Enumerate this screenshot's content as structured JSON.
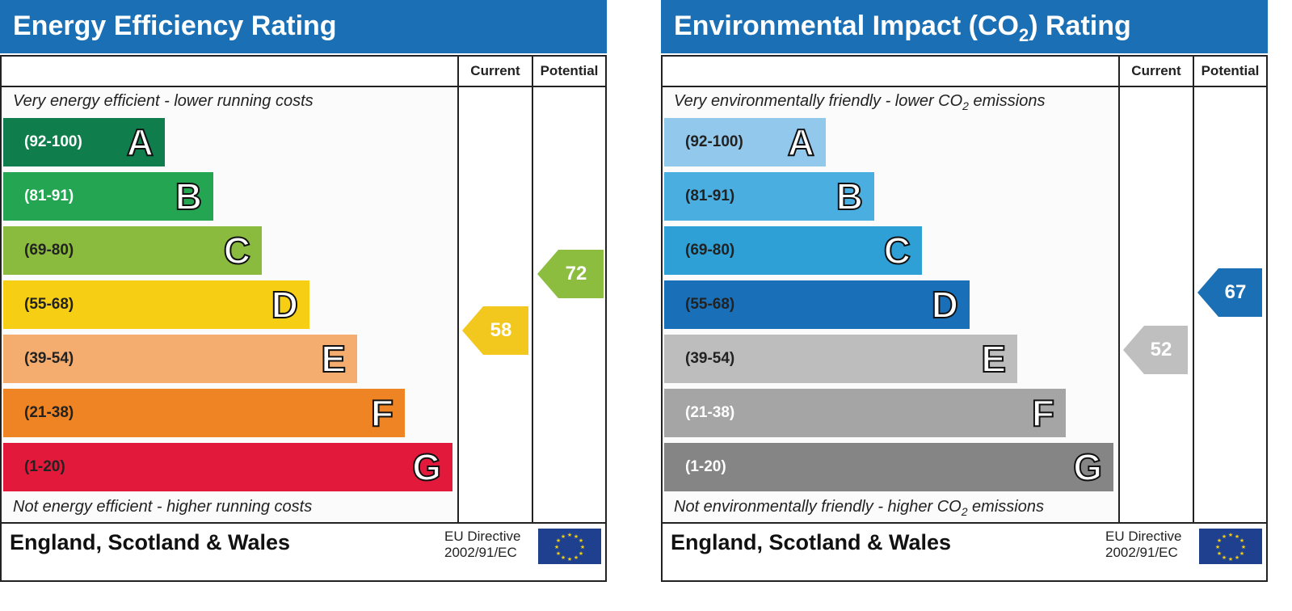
{
  "chart_data": [
    {
      "type": "bar",
      "title": "Energy Efficiency Rating",
      "columns": [
        "Current",
        "Potential"
      ],
      "top_caption": "Very energy efficient - lower running costs",
      "bottom_caption": "Not energy efficient - higher running costs",
      "bands": [
        {
          "range": "(92-100)",
          "letter": "A",
          "color": "#0f7e4c",
          "text_color": "#ffffff"
        },
        {
          "range": "(81-91)",
          "letter": "B",
          "color": "#23a552",
          "text_color": "#ffffff"
        },
        {
          "range": "(69-80)",
          "letter": "C",
          "color": "#8bbb3e",
          "text_color": "#222222"
        },
        {
          "range": "(55-68)",
          "letter": "D",
          "color": "#f6ce14",
          "text_color": "#222222"
        },
        {
          "range": "(39-54)",
          "letter": "E",
          "color": "#f4ad6f",
          "text_color": "#222222"
        },
        {
          "range": "(21-38)",
          "letter": "F",
          "color": "#ee8424",
          "text_color": "#222222"
        },
        {
          "range": "(1-20)",
          "letter": "G",
          "color": "#e3193b",
          "text_color": "#222222"
        }
      ],
      "current": {
        "value": 58,
        "color": "#f2c81f"
      },
      "potential": {
        "value": 72,
        "color": "#8cbd3f"
      },
      "footer": "England, Scotland & Wales",
      "eu_directive": [
        "EU Directive",
        "2002/91/EC"
      ]
    },
    {
      "type": "bar",
      "title_parts": [
        "Environmental Impact (CO",
        "2",
        ") Rating"
      ],
      "columns": [
        "Current",
        "Potential"
      ],
      "top_caption_parts": [
        "Very environmentally friendly - lower CO",
        "2",
        " emissions"
      ],
      "bottom_caption_parts": [
        "Not environmentally friendly - higher CO",
        "2",
        " emissions"
      ],
      "bands": [
        {
          "range": "(92-100)",
          "letter": "A",
          "color": "#92c8ec",
          "text_color": "#222222"
        },
        {
          "range": "(81-91)",
          "letter": "B",
          "color": "#4baee0",
          "text_color": "#222222"
        },
        {
          "range": "(69-80)",
          "letter": "C",
          "color": "#2ea0d6",
          "text_color": "#222222"
        },
        {
          "range": "(55-68)",
          "letter": "D",
          "color": "#1a70b8",
          "text_color": "#222222"
        },
        {
          "range": "(39-54)",
          "letter": "E",
          "color": "#bebdbd",
          "text_color": "#222222"
        },
        {
          "range": "(21-38)",
          "letter": "F",
          "color": "#a6a5a5",
          "text_color": "#ffffff"
        },
        {
          "range": "(1-20)",
          "letter": "G",
          "color": "#868585",
          "text_color": "#ffffff"
        }
      ],
      "current": {
        "value": 52,
        "color": "#bfbfbf"
      },
      "potential": {
        "value": 67,
        "color": "#1b6fb5"
      },
      "footer": "England, Scotland & Wales",
      "eu_directive": [
        "EU Directive",
        "2002/91/EC"
      ]
    }
  ]
}
